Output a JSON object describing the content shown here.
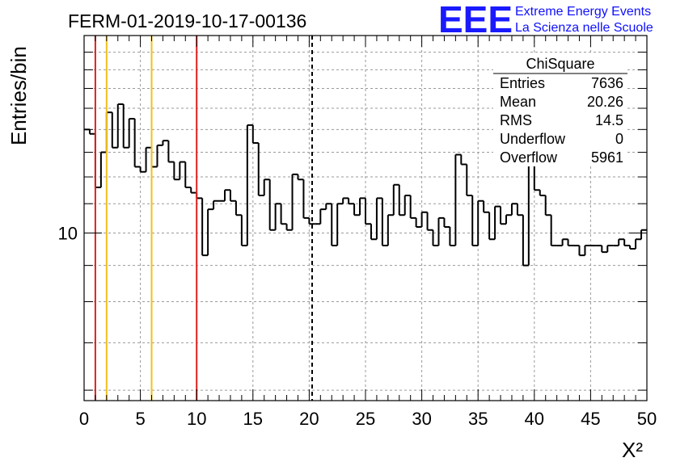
{
  "title": "FERM-01-2019-10-17-00136",
  "logo": {
    "mark": "EEE",
    "line1": "Extreme Energy Events",
    "line2": "La Scienza nelle Scuole",
    "color": "#1a1aff"
  },
  "stats": {
    "name": "ChiSquare",
    "rows": [
      {
        "label": "Entries",
        "value": "7636"
      },
      {
        "label": "Mean",
        "value": "20.26"
      },
      {
        "label": "RMS",
        "value": "14.5"
      },
      {
        "label": "Underflow",
        "value": "0"
      },
      {
        "label": "Overflow",
        "value": "5961"
      }
    ]
  },
  "chart_data": {
    "type": "histogram",
    "ylabel": "Entries/bin",
    "xlabel": "X²",
    "xlim": [
      0,
      50
    ],
    "ylim": [
      5.8,
      19
    ],
    "yscale": "log",
    "grid": true,
    "bin_width": 0.5,
    "x_ticks": [
      "0",
      "5",
      "10",
      "15",
      "20",
      "25",
      "30",
      "35",
      "40",
      "45",
      "50"
    ],
    "y_ticks": [
      "10"
    ],
    "values": [
      14,
      13.8,
      11.6,
      13,
      14.8,
      13.2,
      15.2,
      13.2,
      14.5,
      12.4,
      12.2,
      13.2,
      12.4,
      13.3,
      13.5,
      12.6,
      11.9,
      12.6,
      11.6,
      11.4,
      11.2,
      9.3,
      10.8,
      11.1,
      11.1,
      11.5,
      11.1,
      10.6,
      9.6,
      14.2,
      13.4,
      11.3,
      11.9,
      10.1,
      11.0,
      10.3,
      10.1,
      12.1,
      11.9,
      10.5,
      10.3,
      10.3,
      10.8,
      11.0,
      9.6,
      11.0,
      11.2,
      11.0,
      10.6,
      11.2,
      10.3,
      9.8,
      11.2,
      9.6,
      10.6,
      11.7,
      10.6,
      11.3,
      10.5,
      10.2,
      10.7,
      10.1,
      9.6,
      10.5,
      10.2,
      9.6,
      12.9,
      12.5,
      11.3,
      9.6,
      11.1,
      10.7,
      9.8,
      10.9,
      10.3,
      10.6,
      11.0,
      10.6,
      9.0,
      12.7,
      11.5,
      11.3,
      10.6,
      9.6,
      9.6,
      9.8,
      9.6,
      9.6,
      9.3,
      9.6,
      9.6,
      9.6,
      9.4,
      9.6,
      9.6,
      9.8,
      9.6,
      9.5,
      9.8,
      10.1
    ],
    "vlines": [
      {
        "x": 1,
        "color": "#e02020",
        "style": "solid"
      },
      {
        "x": 2,
        "color": "#f0c020",
        "style": "solid"
      },
      {
        "x": 6,
        "color": "#f0c020",
        "style": "solid"
      },
      {
        "x": 10,
        "color": "#e02020",
        "style": "solid"
      },
      {
        "x": 20.26,
        "color": "#000000",
        "style": "dashed"
      }
    ]
  }
}
